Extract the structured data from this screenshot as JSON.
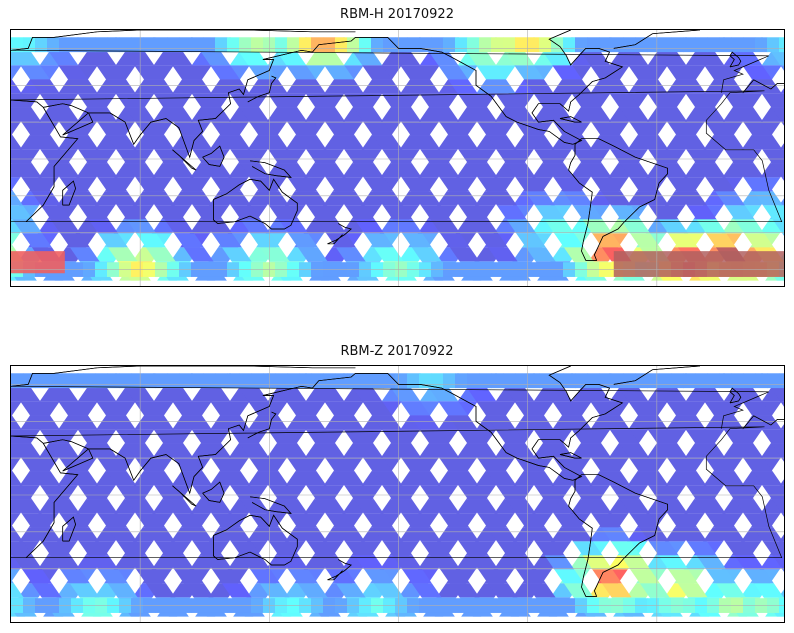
{
  "panels": [
    {
      "title": "RBM-H 20170922",
      "product": "RBM-H",
      "date": "20170922",
      "colormap": "jet",
      "hotspots": [
        {
          "lon": 165,
          "lat": 68,
          "value": 0.95
        },
        {
          "lon": 135,
          "lat": 66,
          "value": 0.6
        },
        {
          "lon": 260,
          "lat": 67,
          "value": 0.8
        },
        {
          "lon": 245,
          "lat": 60,
          "value": 0.6
        },
        {
          "lon": 25,
          "lat": 64,
          "value": 0.4
        },
        {
          "lon": 5,
          "lat": -55,
          "value": 0.85
        },
        {
          "lon": 80,
          "lat": -58,
          "value": 0.7
        },
        {
          "lon": 140,
          "lat": -58,
          "value": 0.55
        },
        {
          "lon": 200,
          "lat": -58,
          "value": 0.5
        },
        {
          "lon": 300,
          "lat": -50,
          "value": 0.95
        },
        {
          "lon": 335,
          "lat": -56,
          "value": 1.0
        },
        {
          "lon": 355,
          "lat": -52,
          "value": 1.0
        },
        {
          "lon": 275,
          "lat": -40,
          "value": 0.45
        },
        {
          "lon": 10,
          "lat": -35,
          "value": 0.45
        }
      ]
    },
    {
      "title": "RBM-Z 20170922",
      "product": "RBM-Z",
      "date": "20170922",
      "colormap": "jet",
      "hotspots": [
        {
          "lon": 215,
          "lat": 64,
          "value": 0.35
        },
        {
          "lon": 300,
          "lat": -45,
          "value": 0.9
        },
        {
          "lon": 330,
          "lat": -50,
          "value": 0.65
        },
        {
          "lon": 355,
          "lat": -60,
          "value": 0.55
        },
        {
          "lon": 10,
          "lat": -60,
          "value": 0.5
        },
        {
          "lon": 60,
          "lat": -62,
          "value": 0.45
        },
        {
          "lon": 150,
          "lat": -62,
          "value": 0.4
        },
        {
          "lon": 190,
          "lat": -60,
          "value": 0.4
        }
      ]
    }
  ],
  "map": {
    "projection": "PlateCarree",
    "lon_range": [
      20,
      380
    ],
    "lat_range": [
      -70,
      70
    ],
    "gridlines_lon": [
      80,
      140,
      200,
      260,
      320
    ],
    "gridlines_lat": [
      -60,
      -40,
      -20,
      0,
      20,
      40,
      60
    ]
  },
  "colors": {
    "low": "#6666ff",
    "mid": "#66eeee",
    "high": "#ff6666",
    "saturated": "#b06060",
    "coast": "#000000",
    "grid": "#b0b0b0"
  }
}
